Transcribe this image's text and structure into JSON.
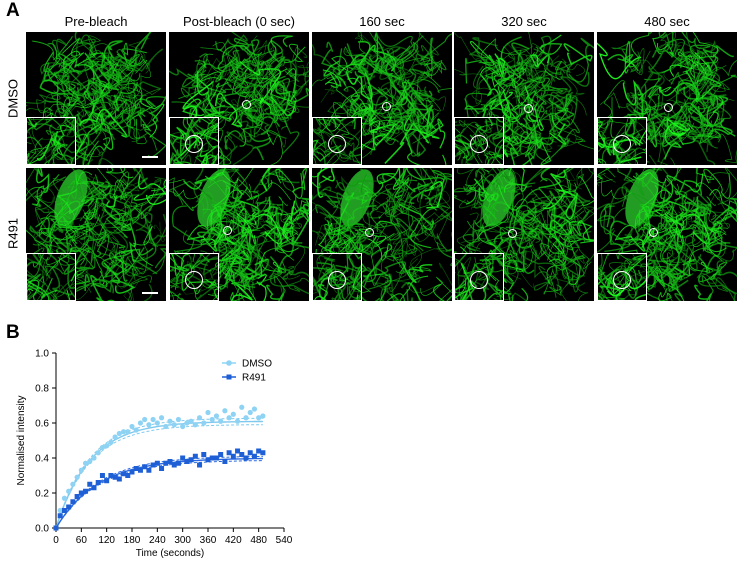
{
  "panel_a": {
    "letter": "A",
    "columns": [
      "Pre-bleach",
      "Post-bleach (0 sec)",
      "160 sec",
      "320 sec",
      "480 sec"
    ],
    "rows": [
      "DMSO",
      "R491"
    ]
  },
  "panel_b": {
    "letter": "B"
  },
  "chart_data": {
    "type": "scatter",
    "title": "",
    "xlabel": "Time (seconds)",
    "ylabel": "Normalised intensity",
    "xlim": [
      0,
      540
    ],
    "ylim": [
      0,
      1.0
    ],
    "xticks": [
      0,
      60,
      120,
      180,
      240,
      300,
      360,
      420,
      480,
      540
    ],
    "yticks": [
      0.0,
      0.2,
      0.4,
      0.6,
      0.8,
      1.0
    ],
    "ytick_labels": [
      "0.0",
      "0.2",
      "0.4",
      "0.6",
      "0.8",
      "1.0"
    ],
    "legend_position": "top-right",
    "grid": false,
    "series": [
      {
        "name": "DMSO",
        "marker": "circle",
        "color": "#8fd3f4",
        "fit_color": "#7fc9ee",
        "fit": {
          "plateau": 0.61,
          "k": 0.0125
        },
        "x": [
          0,
          10,
          20,
          30,
          40,
          50,
          60,
          70,
          80,
          90,
          100,
          110,
          120,
          130,
          140,
          150,
          160,
          170,
          180,
          190,
          200,
          210,
          220,
          230,
          240,
          250,
          260,
          270,
          280,
          290,
          300,
          310,
          320,
          330,
          340,
          350,
          360,
          370,
          380,
          390,
          400,
          410,
          420,
          430,
          440,
          450,
          460,
          470,
          480,
          490
        ],
        "y": [
          0.0,
          0.1,
          0.17,
          0.21,
          0.25,
          0.29,
          0.33,
          0.37,
          0.38,
          0.4,
          0.43,
          0.46,
          0.47,
          0.49,
          0.52,
          0.54,
          0.55,
          0.55,
          0.58,
          0.56,
          0.6,
          0.62,
          0.59,
          0.62,
          0.6,
          0.63,
          0.58,
          0.61,
          0.59,
          0.62,
          0.58,
          0.6,
          0.61,
          0.59,
          0.63,
          0.6,
          0.66,
          0.62,
          0.64,
          0.61,
          0.67,
          0.63,
          0.65,
          0.61,
          0.69,
          0.63,
          0.66,
          0.68,
          0.63,
          0.64
        ]
      },
      {
        "name": "R491",
        "marker": "square",
        "color": "#1f5fd6",
        "fit_color": "#2a6ae0",
        "fit": {
          "plateau": 0.4,
          "k": 0.01
        },
        "x": [
          0,
          10,
          20,
          30,
          40,
          50,
          60,
          70,
          80,
          90,
          100,
          110,
          120,
          130,
          140,
          150,
          160,
          170,
          180,
          190,
          200,
          210,
          220,
          230,
          240,
          250,
          260,
          270,
          280,
          290,
          300,
          310,
          320,
          330,
          340,
          350,
          360,
          370,
          380,
          390,
          400,
          410,
          420,
          430,
          440,
          450,
          460,
          470,
          480,
          490
        ],
        "y": [
          0.0,
          0.07,
          0.1,
          0.12,
          0.15,
          0.18,
          0.2,
          0.21,
          0.25,
          0.23,
          0.26,
          0.3,
          0.27,
          0.3,
          0.29,
          0.28,
          0.31,
          0.3,
          0.32,
          0.34,
          0.33,
          0.35,
          0.33,
          0.36,
          0.37,
          0.34,
          0.37,
          0.38,
          0.36,
          0.37,
          0.4,
          0.38,
          0.39,
          0.41,
          0.36,
          0.42,
          0.39,
          0.4,
          0.4,
          0.42,
          0.38,
          0.43,
          0.41,
          0.44,
          0.42,
          0.4,
          0.43,
          0.41,
          0.44,
          0.43
        ]
      }
    ]
  }
}
